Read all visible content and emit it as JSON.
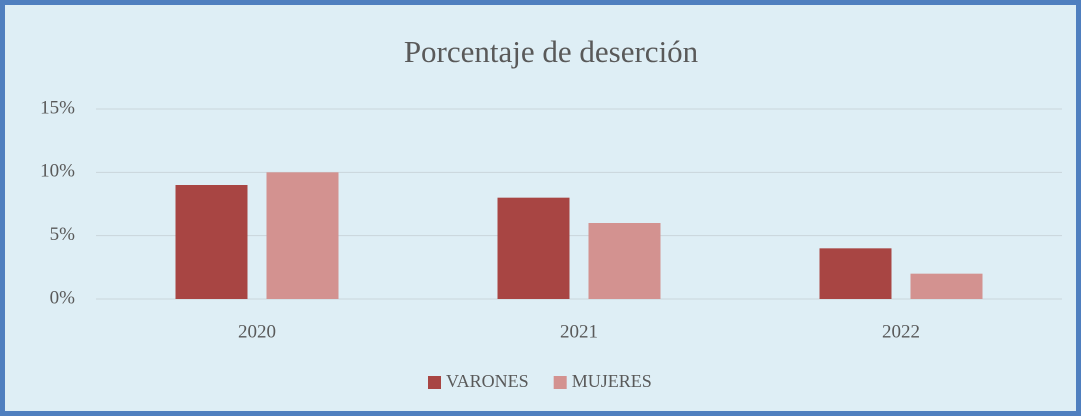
{
  "chart_data": {
    "type": "bar",
    "title": "Porcentaje de deserción",
    "categories": [
      "2020",
      "2021",
      "2022"
    ],
    "series": [
      {
        "name": "VARONES",
        "color": "#a84543",
        "values": [
          9,
          8,
          4
        ]
      },
      {
        "name": "MUJERES",
        "color": "#d39290",
        "values": [
          10,
          6,
          2
        ]
      }
    ],
    "ylim": [
      0,
      15
    ],
    "yticks": [
      {
        "value": 0,
        "label": "0%"
      },
      {
        "value": 5,
        "label": "5%"
      },
      {
        "value": 10,
        "label": "10%"
      },
      {
        "value": 15,
        "label": "15%"
      }
    ],
    "grid": true,
    "legend": "bottom"
  }
}
